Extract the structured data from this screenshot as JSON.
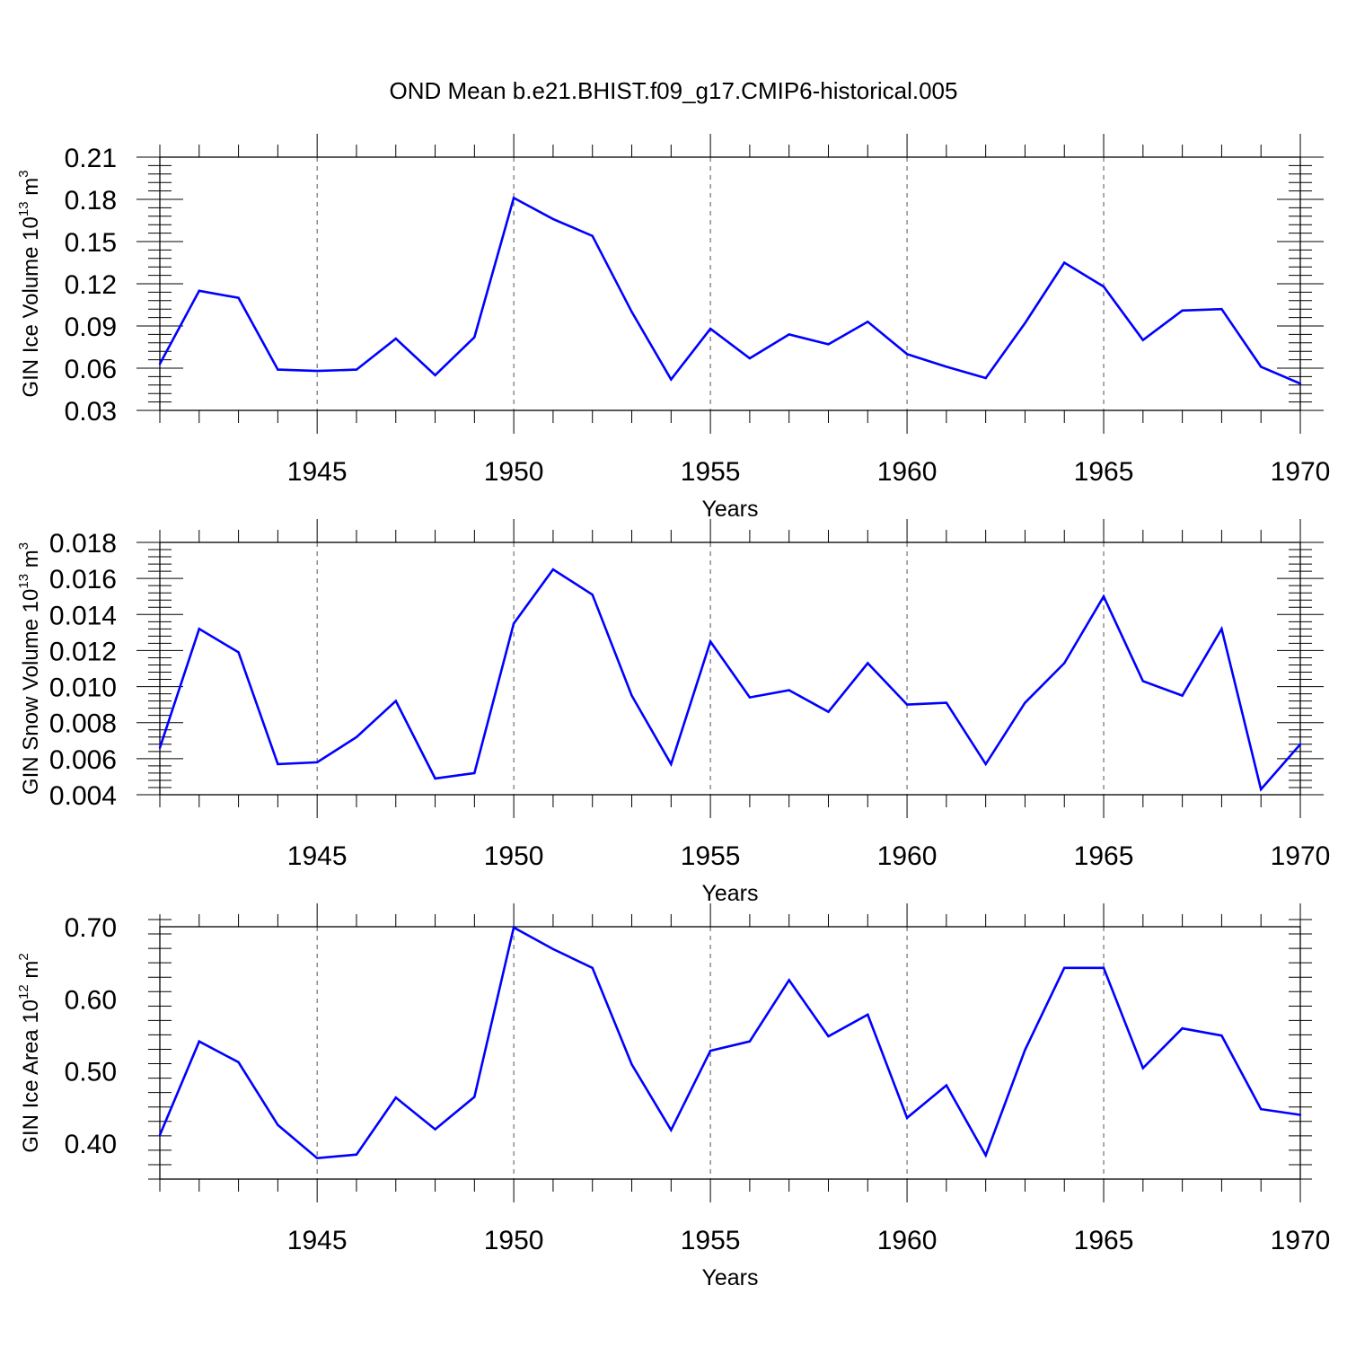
{
  "title": "OND Mean b.e21.BHIST.f09_g17.CMIP6-historical.005",
  "chart_data": [
    {
      "type": "line",
      "ylabel": {
        "text": "GIN Ice Volume 10",
        "exp": "13",
        "unit": " m",
        "unit_exp": "3"
      },
      "xlabel": "Years",
      "xlim": [
        1941,
        1970
      ],
      "ylim": [
        0.03,
        0.21
      ],
      "yticks": [
        0.03,
        0.06,
        0.09,
        0.12,
        0.15,
        0.18,
        0.21
      ],
      "ytick_labels": [
        "0.03",
        "0.06",
        "0.09",
        "0.12",
        "0.15",
        "0.18",
        "0.21"
      ],
      "xticks": [
        1945,
        1950,
        1955,
        1960,
        1965,
        1970
      ],
      "xtick_labels": [
        "1945",
        "1950",
        "1955",
        "1960",
        "1965",
        "1970"
      ],
      "grid": "dashed vertical at major x ticks",
      "color": "#0000ff",
      "x": [
        1941,
        1942,
        1943,
        1944,
        1945,
        1946,
        1947,
        1948,
        1949,
        1950,
        1951,
        1952,
        1953,
        1954,
        1955,
        1956,
        1957,
        1958,
        1959,
        1960,
        1961,
        1962,
        1963,
        1964,
        1965,
        1966,
        1967,
        1968,
        1969,
        1970
      ],
      "y": [
        0.063,
        0.115,
        0.11,
        0.059,
        0.058,
        0.059,
        0.081,
        0.055,
        0.082,
        0.181,
        0.166,
        0.154,
        0.1,
        0.052,
        0.088,
        0.067,
        0.084,
        0.077,
        0.093,
        0.07,
        0.061,
        0.053,
        0.092,
        0.135,
        0.118,
        0.08,
        0.101,
        0.102,
        0.061,
        0.049
      ]
    },
    {
      "type": "line",
      "ylabel": {
        "text": "GIN Snow Volume 10",
        "exp": "13",
        "unit": " m",
        "unit_exp": "3"
      },
      "xlabel": "Years",
      "xlim": [
        1941,
        1970
      ],
      "ylim": [
        0.004,
        0.018
      ],
      "yticks": [
        0.004,
        0.006,
        0.008,
        0.01,
        0.012,
        0.014,
        0.016,
        0.018
      ],
      "ytick_labels": [
        "0.004",
        "0.006",
        "0.008",
        "0.010",
        "0.012",
        "0.014",
        "0.016",
        "0.018"
      ],
      "xticks": [
        1945,
        1950,
        1955,
        1960,
        1965,
        1970
      ],
      "xtick_labels": [
        "1945",
        "1950",
        "1955",
        "1960",
        "1965",
        "1970"
      ],
      "grid": "dashed vertical at major x ticks",
      "color": "#0000ff",
      "x": [
        1941,
        1942,
        1943,
        1944,
        1945,
        1946,
        1947,
        1948,
        1949,
        1950,
        1951,
        1952,
        1953,
        1954,
        1955,
        1956,
        1957,
        1958,
        1959,
        1960,
        1961,
        1962,
        1963,
        1964,
        1965,
        1966,
        1967,
        1968,
        1969,
        1970
      ],
      "y": [
        0.0066,
        0.0132,
        0.0119,
        0.0057,
        0.0058,
        0.0072,
        0.0092,
        0.0049,
        0.0052,
        0.0135,
        0.0165,
        0.0151,
        0.0095,
        0.0057,
        0.0125,
        0.0094,
        0.0098,
        0.0086,
        0.0113,
        0.009,
        0.0091,
        0.0057,
        0.0091,
        0.0113,
        0.015,
        0.0103,
        0.0095,
        0.0132,
        0.0043,
        0.0068
      ]
    },
    {
      "type": "line",
      "ylabel": {
        "text": "GIN Ice Area 10",
        "exp": "12",
        "unit": " m",
        "unit_exp": "2"
      },
      "xlabel": "Years",
      "xlim": [
        1941,
        1970
      ],
      "ylim": [
        0.35,
        0.7
      ],
      "yticks": [
        0.4,
        0.5,
        0.6,
        0.7
      ],
      "ytick_labels": [
        "0.40",
        "0.50",
        "0.60",
        "0.70"
      ],
      "xticks": [
        1945,
        1950,
        1955,
        1960,
        1965,
        1970
      ],
      "xtick_labels": [
        "1945",
        "1950",
        "1955",
        "1960",
        "1965",
        "1970"
      ],
      "grid": "dashed vertical at major x ticks",
      "color": "#0000ff",
      "x": [
        1941,
        1942,
        1943,
        1944,
        1945,
        1946,
        1947,
        1948,
        1949,
        1950,
        1951,
        1952,
        1953,
        1954,
        1955,
        1956,
        1957,
        1958,
        1959,
        1960,
        1961,
        1962,
        1963,
        1964,
        1965,
        1966,
        1967,
        1968,
        1969,
        1970
      ],
      "y": [
        0.411,
        0.541,
        0.512,
        0.425,
        0.379,
        0.384,
        0.463,
        0.419,
        0.464,
        0.699,
        0.669,
        0.643,
        0.509,
        0.418,
        0.528,
        0.541,
        0.626,
        0.548,
        0.578,
        0.435,
        0.48,
        0.383,
        0.529,
        0.643,
        0.643,
        0.504,
        0.559,
        0.549,
        0.447,
        0.439
      ]
    }
  ]
}
